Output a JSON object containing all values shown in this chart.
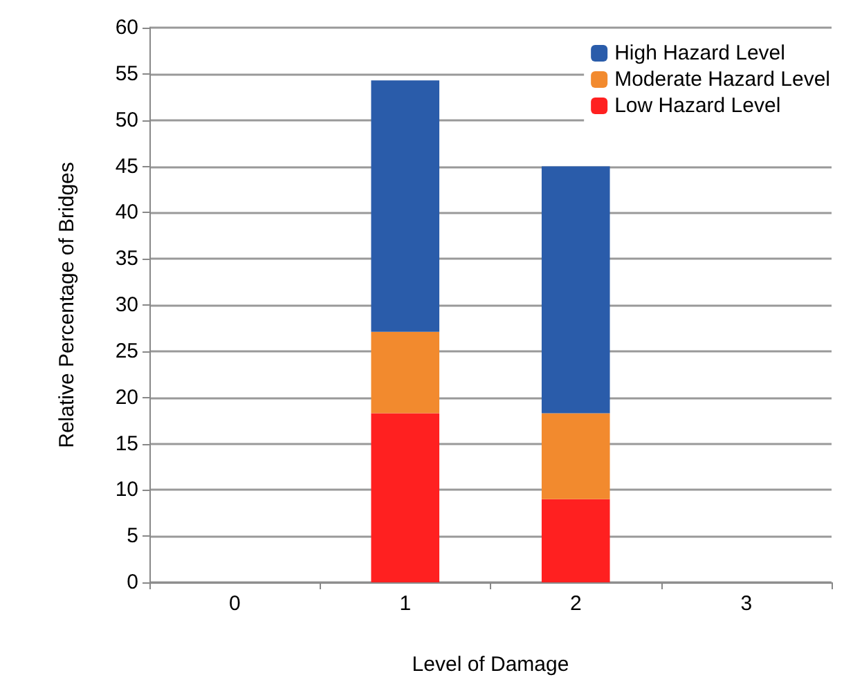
{
  "chart_data": {
    "type": "bar",
    "stacked": true,
    "xlabel": "Level of Damage",
    "ylabel": "Relative Percentage of Bridges",
    "categories": [
      "0",
      "1",
      "2",
      "3"
    ],
    "series": [
      {
        "name": "Low Hazard Level",
        "color": "#ff2020",
        "values": [
          0,
          18.3,
          9,
          0
        ]
      },
      {
        "name": "Moderate Hazard Level",
        "color": "#f28a2e",
        "values": [
          0,
          8.8,
          9.3,
          0
        ]
      },
      {
        "name": "High Hazard Level",
        "color": "#2a5caa",
        "values": [
          0,
          27.2,
          26.7,
          0
        ]
      }
    ],
    "ylim": [
      0,
      60
    ],
    "yticks": [
      0,
      5,
      10,
      15,
      20,
      25,
      30,
      35,
      40,
      45,
      50,
      55,
      60
    ],
    "grid": "y",
    "legend": "top right"
  }
}
